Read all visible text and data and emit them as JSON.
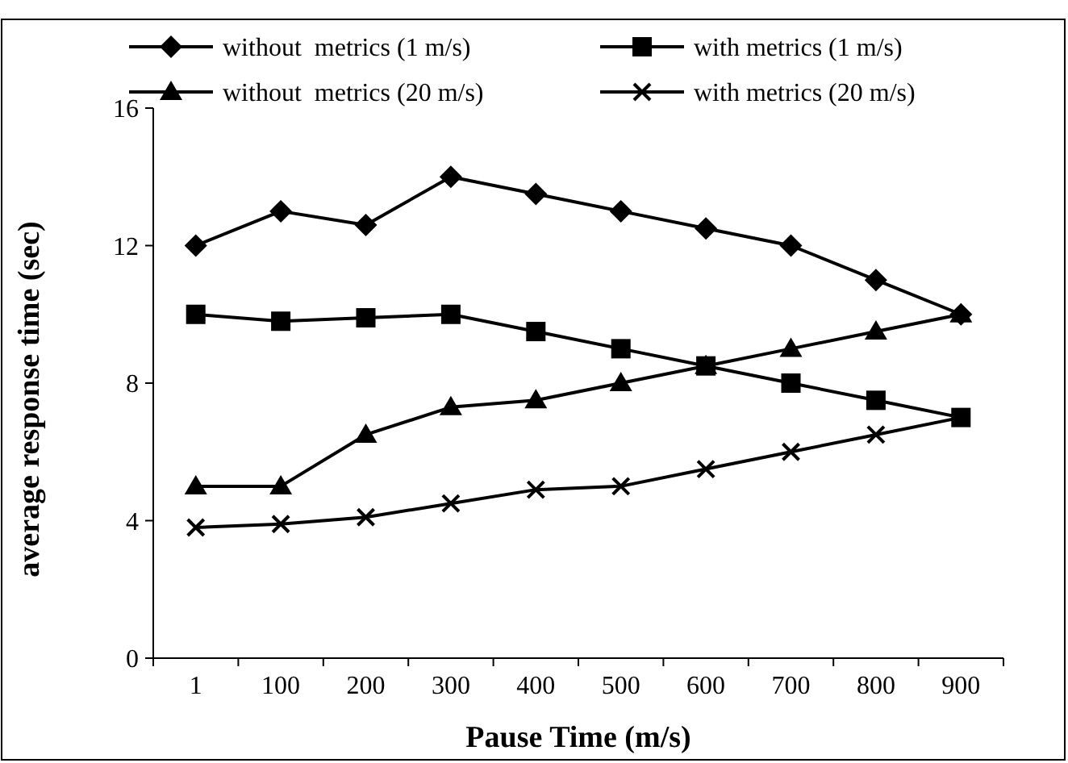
{
  "chart_data": {
    "type": "line",
    "xlabel": "Pause Time (m/s)",
    "ylabel": "average response time (sec)",
    "categories": [
      "1",
      "100",
      "200",
      "300",
      "400",
      "500",
      "600",
      "700",
      "800",
      "900"
    ],
    "ylim": [
      0,
      16
    ],
    "yticks": [
      0,
      4,
      8,
      12,
      16
    ],
    "grid": false,
    "legend": "top",
    "line_style": "solid",
    "series": [
      {
        "name": "without  metrics (1 m/s)",
        "color": "#000000",
        "marker": "diamond",
        "values": [
          12,
          13,
          12.6,
          14,
          13.5,
          13,
          12.5,
          12,
          11,
          10
        ]
      },
      {
        "name": "with metrics (1 m/s)",
        "color": "#000000",
        "marker": "square",
        "values": [
          10,
          9.8,
          9.9,
          10,
          9.5,
          9,
          8.5,
          8,
          7.5,
          7
        ]
      },
      {
        "name": "without  metrics (20 m/s)",
        "color": "#000000",
        "marker": "triangle",
        "values": [
          5,
          5,
          6.5,
          7.3,
          7.5,
          8,
          8.5,
          9,
          9.5,
          10
        ]
      },
      {
        "name": "with metrics (20 m/s)",
        "color": "#000000",
        "marker": "cross",
        "values": [
          3.8,
          3.9,
          4.1,
          4.5,
          4.9,
          5,
          5.5,
          6,
          6.5,
          7
        ]
      }
    ]
  }
}
